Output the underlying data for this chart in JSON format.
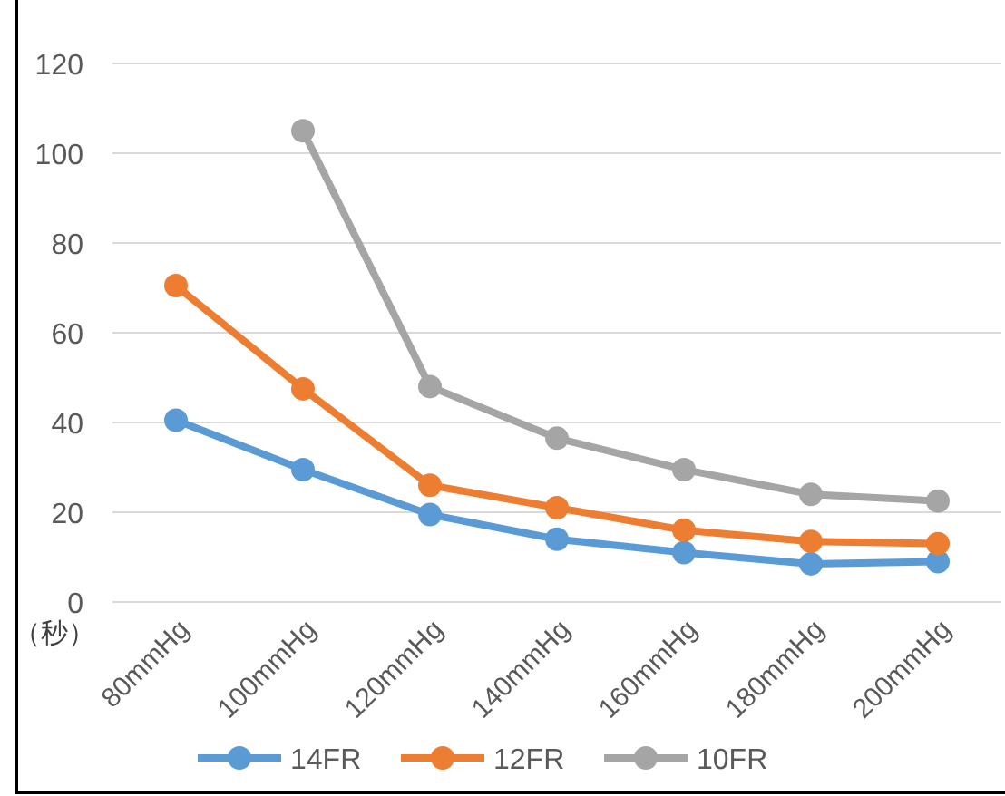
{
  "chart_data": {
    "type": "line",
    "ylabel": "（秒）",
    "categories": [
      "80mmHg",
      "100mmHg",
      "120mmHg",
      "140mmHg",
      "160mmHg",
      "180mmHg",
      "200mmHg"
    ],
    "series": [
      {
        "name": "14FR",
        "color": "#5b9bd5",
        "values": [
          40.5,
          29.5,
          19.5,
          14,
          11,
          8.5,
          9
        ]
      },
      {
        "name": "12FR",
        "color": "#ed7d31",
        "values": [
          70.5,
          47.5,
          26,
          21,
          16,
          13.5,
          13
        ]
      },
      {
        "name": "10FR",
        "color": "#a5a5a5",
        "values": [
          null,
          105,
          48,
          36.5,
          29.5,
          24,
          22.5
        ]
      }
    ],
    "ylim": [
      0,
      120
    ],
    "yticks": [
      0,
      20,
      40,
      60,
      80,
      100,
      120
    ],
    "grid": "y",
    "marker": "circle",
    "line_style": "solid",
    "legend": "bottom"
  }
}
